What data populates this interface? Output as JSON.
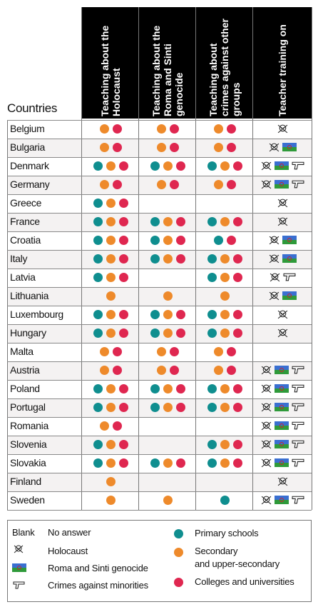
{
  "columns": [
    {
      "key": "holocaust",
      "title": "Teaching about the Holocaust"
    },
    {
      "key": "roma",
      "title": "Teaching about the Roma and Sinti genocide"
    },
    {
      "key": "crimes",
      "title": "Teaching about crimes against other groups"
    },
    {
      "key": "training",
      "title": "Teacher training on"
    }
  ],
  "countries_label": "Countries",
  "rows": [
    {
      "country": "Belgium",
      "holocaust": [
        "secondary",
        "college"
      ],
      "roma": [
        "secondary",
        "college"
      ],
      "crimes": [
        "secondary",
        "college"
      ],
      "training": [
        "holocaust"
      ]
    },
    {
      "country": "Bulgaria",
      "holocaust": [
        "secondary",
        "college"
      ],
      "roma": [
        "secondary",
        "college"
      ],
      "crimes": [
        "secondary",
        "college"
      ],
      "training": [
        "holocaust",
        "roma"
      ]
    },
    {
      "country": "Denmark",
      "holocaust": [
        "primary",
        "secondary",
        "college"
      ],
      "roma": [
        "primary",
        "secondary",
        "college"
      ],
      "crimes": [
        "primary",
        "secondary",
        "college"
      ],
      "training": [
        "holocaust",
        "roma",
        "crimes"
      ]
    },
    {
      "country": "Germany",
      "holocaust": [
        "secondary",
        "college"
      ],
      "roma": [
        "secondary",
        "college"
      ],
      "crimes": [
        "secondary",
        "college"
      ],
      "training": [
        "holocaust",
        "roma",
        "crimes"
      ]
    },
    {
      "country": "Greece",
      "holocaust": [
        "primary",
        "secondary",
        "college"
      ],
      "roma": [],
      "crimes": [],
      "training": [
        "holocaust"
      ]
    },
    {
      "country": "France",
      "holocaust": [
        "primary",
        "secondary",
        "college"
      ],
      "roma": [
        "primary",
        "secondary",
        "college"
      ],
      "crimes": [
        "primary",
        "secondary",
        "college"
      ],
      "training": [
        "holocaust"
      ]
    },
    {
      "country": "Croatia",
      "holocaust": [
        "primary",
        "secondary",
        "college"
      ],
      "roma": [
        "primary",
        "secondary",
        "college"
      ],
      "crimes": [
        "primary",
        "college"
      ],
      "training": [
        "holocaust",
        "roma"
      ]
    },
    {
      "country": "Italy",
      "holocaust": [
        "primary",
        "secondary",
        "college"
      ],
      "roma": [
        "primary",
        "secondary",
        "college"
      ],
      "crimes": [
        "primary",
        "secondary",
        "college"
      ],
      "training": [
        "holocaust",
        "roma"
      ]
    },
    {
      "country": "Latvia",
      "holocaust": [
        "primary",
        "secondary",
        "college"
      ],
      "roma": [],
      "crimes": [
        "primary",
        "secondary",
        "college"
      ],
      "training": [
        "holocaust",
        "crimes"
      ]
    },
    {
      "country": "Lithuania",
      "holocaust": [
        "secondary"
      ],
      "roma": [
        "secondary"
      ],
      "crimes": [
        "secondary"
      ],
      "training": [
        "holocaust",
        "roma"
      ]
    },
    {
      "country": "Luxembourg",
      "holocaust": [
        "primary",
        "secondary",
        "college"
      ],
      "roma": [
        "primary",
        "secondary",
        "college"
      ],
      "crimes": [
        "primary",
        "secondary",
        "college"
      ],
      "training": [
        "holocaust"
      ]
    },
    {
      "country": "Hungary",
      "holocaust": [
        "primary",
        "secondary",
        "college"
      ],
      "roma": [
        "primary",
        "secondary",
        "college"
      ],
      "crimes": [
        "primary",
        "secondary",
        "college"
      ],
      "training": [
        "holocaust"
      ]
    },
    {
      "country": "Malta",
      "holocaust": [
        "secondary",
        "college"
      ],
      "roma": [
        "secondary",
        "college"
      ],
      "crimes": [
        "secondary",
        "college"
      ],
      "training": []
    },
    {
      "country": "Austria",
      "holocaust": [
        "secondary",
        "college"
      ],
      "roma": [
        "secondary",
        "college"
      ],
      "crimes": [
        "secondary",
        "college"
      ],
      "training": [
        "holocaust",
        "roma",
        "crimes"
      ]
    },
    {
      "country": "Poland",
      "holocaust": [
        "primary",
        "secondary",
        "college"
      ],
      "roma": [
        "primary",
        "secondary",
        "college"
      ],
      "crimes": [
        "primary",
        "secondary",
        "college"
      ],
      "training": [
        "holocaust",
        "roma",
        "crimes"
      ]
    },
    {
      "country": "Portugal",
      "holocaust": [
        "primary",
        "secondary",
        "college"
      ],
      "roma": [
        "primary",
        "secondary",
        "college"
      ],
      "crimes": [
        "primary",
        "secondary",
        "college"
      ],
      "training": [
        "holocaust",
        "roma",
        "crimes"
      ]
    },
    {
      "country": "Romania",
      "holocaust": [
        "secondary",
        "college"
      ],
      "roma": [],
      "crimes": [],
      "training": [
        "holocaust",
        "roma",
        "crimes"
      ]
    },
    {
      "country": "Slovenia",
      "holocaust": [
        "primary",
        "secondary",
        "college"
      ],
      "roma": [],
      "crimes": [
        "primary",
        "secondary",
        "college"
      ],
      "training": [
        "holocaust",
        "roma",
        "crimes"
      ]
    },
    {
      "country": "Slovakia",
      "holocaust": [
        "primary",
        "secondary",
        "college"
      ],
      "roma": [
        "primary",
        "secondary",
        "college"
      ],
      "crimes": [
        "primary",
        "secondary",
        "college"
      ],
      "training": [
        "holocaust",
        "roma",
        "crimes"
      ]
    },
    {
      "country": "Finland",
      "holocaust": [
        "secondary"
      ],
      "roma": [],
      "crimes": [],
      "training": [
        "holocaust"
      ]
    },
    {
      "country": "Sweden",
      "holocaust": [
        "secondary"
      ],
      "roma": [
        "secondary"
      ],
      "crimes": [
        "primary"
      ],
      "training": [
        "holocaust",
        "roma",
        "crimes"
      ]
    }
  ],
  "legend": {
    "blank_key": "Blank",
    "blank_label": "No answer",
    "holocaust_label": "Holocaust",
    "roma_label": "Roma and Sinti genocide",
    "crimes_label": "Crimes against minorities",
    "primary_label": "Primary schools",
    "secondary_label_1": "Secondary",
    "secondary_label_2": "and upper-secondary",
    "college_label": "Colleges and universities"
  },
  "colors": {
    "primary": "#0f8e8f",
    "secondary": "#ee8a2b",
    "college": "#df2750",
    "header_bg": "#000000",
    "header_text": "#ffffff",
    "flag_top": "#3a6fd1",
    "flag_bottom": "#2f9a3a",
    "flag_wheel": "#d0202c"
  }
}
